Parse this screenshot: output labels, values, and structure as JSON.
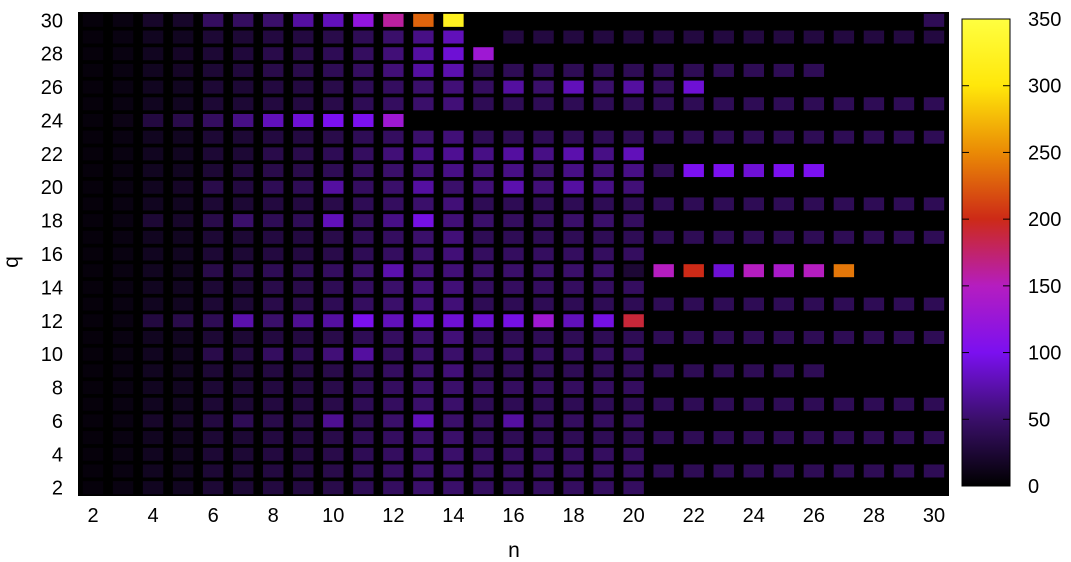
{
  "chart_data": {
    "type": "heatmap",
    "title": "",
    "xlabel": "n",
    "ylabel": "q",
    "xlim": [
      1.5,
      30.5
    ],
    "ylim": [
      1.5,
      30.5
    ],
    "x_ticks": [
      2,
      4,
      6,
      8,
      10,
      12,
      14,
      16,
      18,
      20,
      22,
      24,
      26,
      28,
      30
    ],
    "y_ticks": [
      2,
      4,
      6,
      8,
      10,
      12,
      14,
      16,
      18,
      20,
      22,
      24,
      26,
      28,
      30
    ],
    "colorbar": {
      "range": [
        0,
        350
      ],
      "ticks": [
        0,
        50,
        100,
        150,
        200,
        250,
        300,
        350
      ],
      "palette": [
        "#000000",
        "#3a0f6a",
        "#7b10f0",
        "#b51dc0",
        "#cd2a17",
        "#ea8a05",
        "#ffe70a",
        "#ffff40"
      ]
    },
    "background_color": "#000000",
    "value_grid": {
      "rows_q": [
        30,
        29,
        28,
        27,
        26,
        25,
        24,
        23,
        22,
        21,
        20,
        19,
        18,
        17,
        16,
        15,
        14,
        13,
        12,
        11,
        10,
        9,
        8,
        7,
        6,
        5,
        4,
        3,
        2
      ],
      "cols_n": [
        2,
        3,
        4,
        5,
        6,
        7,
        8,
        9,
        10,
        11,
        12,
        13,
        14,
        15,
        16,
        17,
        18,
        19,
        20,
        21,
        22,
        23,
        24,
        25,
        26,
        27,
        28,
        29,
        30
      ],
      "values": [
        [
          5,
          8,
          20,
          20,
          45,
          45,
          50,
          70,
          80,
          120,
          160,
          230,
          320,
          0,
          0,
          0,
          0,
          0,
          0,
          0,
          0,
          0,
          0,
          0,
          0,
          0,
          0,
          0,
          40
        ],
        [
          5,
          8,
          15,
          15,
          25,
          25,
          30,
          30,
          35,
          40,
          50,
          60,
          80,
          0,
          30,
          30,
          30,
          30,
          30,
          30,
          30,
          30,
          30,
          30,
          30,
          30,
          30,
          30,
          30
        ],
        [
          5,
          8,
          15,
          18,
          25,
          28,
          35,
          35,
          40,
          45,
          55,
          70,
          90,
          130,
          0,
          0,
          0,
          0,
          0,
          0,
          0,
          0,
          0,
          0,
          0,
          0,
          0,
          0,
          0
        ],
        [
          5,
          8,
          15,
          18,
          25,
          28,
          35,
          35,
          40,
          45,
          55,
          70,
          75,
          40,
          40,
          40,
          40,
          40,
          40,
          40,
          40,
          40,
          40,
          40,
          40,
          0,
          0,
          0,
          0
        ],
        [
          5,
          8,
          15,
          15,
          25,
          25,
          30,
          30,
          35,
          40,
          45,
          50,
          55,
          45,
          70,
          50,
          80,
          50,
          70,
          45,
          90,
          0,
          0,
          0,
          0,
          0,
          0,
          0,
          0
        ],
        [
          5,
          8,
          15,
          15,
          25,
          25,
          30,
          30,
          35,
          40,
          45,
          50,
          55,
          40,
          40,
          40,
          40,
          40,
          40,
          40,
          40,
          40,
          40,
          40,
          40,
          40,
          40,
          40,
          40
        ],
        [
          5,
          10,
          30,
          35,
          45,
          60,
          80,
          90,
          100,
          100,
          130,
          0,
          0,
          0,
          0,
          0,
          0,
          0,
          0,
          0,
          0,
          0,
          0,
          0,
          0,
          0,
          0,
          0,
          0
        ],
        [
          5,
          8,
          15,
          15,
          25,
          25,
          30,
          30,
          35,
          40,
          45,
          50,
          55,
          40,
          40,
          40,
          40,
          40,
          40,
          40,
          40,
          40,
          40,
          40,
          40,
          40,
          40,
          40,
          40
        ],
        [
          5,
          8,
          15,
          15,
          25,
          25,
          35,
          35,
          40,
          45,
          55,
          60,
          65,
          60,
          70,
          60,
          75,
          60,
          80,
          0,
          0,
          0,
          0,
          0,
          0,
          0,
          0,
          0,
          0
        ],
        [
          5,
          8,
          15,
          15,
          25,
          30,
          35,
          35,
          40,
          45,
          50,
          55,
          60,
          55,
          60,
          50,
          60,
          55,
          60,
          40,
          100,
          100,
          90,
          100,
          100,
          0,
          0,
          0,
          0
        ],
        [
          5,
          8,
          15,
          18,
          35,
          30,
          40,
          40,
          70,
          45,
          50,
          70,
          50,
          55,
          75,
          55,
          70,
          60,
          55,
          0,
          0,
          0,
          0,
          0,
          0,
          0,
          0,
          0,
          0
        ],
        [
          5,
          8,
          15,
          15,
          25,
          25,
          30,
          30,
          35,
          40,
          45,
          50,
          55,
          40,
          40,
          40,
          40,
          40,
          40,
          40,
          40,
          40,
          40,
          40,
          40,
          40,
          40,
          40,
          40
        ],
        [
          5,
          8,
          25,
          20,
          35,
          50,
          40,
          40,
          80,
          45,
          60,
          95,
          55,
          50,
          45,
          45,
          50,
          50,
          45,
          0,
          0,
          0,
          0,
          0,
          0,
          0,
          0,
          0,
          0
        ],
        [
          5,
          8,
          15,
          15,
          25,
          25,
          30,
          30,
          35,
          40,
          45,
          50,
          55,
          40,
          40,
          40,
          40,
          40,
          40,
          40,
          40,
          40,
          40,
          40,
          40,
          40,
          40,
          40,
          40
        ],
        [
          5,
          8,
          15,
          15,
          25,
          25,
          30,
          30,
          35,
          40,
          45,
          50,
          55,
          45,
          45,
          45,
          45,
          45,
          45,
          0,
          0,
          0,
          0,
          0,
          0,
          0,
          0,
          0,
          0
        ],
        [
          5,
          8,
          15,
          15,
          35,
          35,
          40,
          40,
          45,
          50,
          75,
          55,
          55,
          50,
          50,
          50,
          50,
          50,
          25,
          150,
          200,
          90,
          150,
          140,
          150,
          240,
          0,
          0,
          0
        ],
        [
          5,
          8,
          15,
          15,
          25,
          25,
          35,
          35,
          40,
          45,
          50,
          55,
          55,
          45,
          45,
          45,
          45,
          45,
          45,
          0,
          0,
          0,
          0,
          0,
          0,
          0,
          0,
          0,
          0
        ],
        [
          5,
          8,
          15,
          15,
          25,
          25,
          35,
          35,
          40,
          45,
          50,
          55,
          55,
          40,
          40,
          40,
          40,
          40,
          40,
          40,
          40,
          40,
          40,
          40,
          40,
          40,
          40,
          40,
          40
        ],
        [
          5,
          8,
          30,
          35,
          40,
          75,
          50,
          65,
          70,
          100,
          80,
          90,
          90,
          90,
          95,
          130,
          80,
          95,
          190,
          0,
          0,
          0,
          0,
          0,
          0,
          0,
          0,
          0,
          0
        ],
        [
          5,
          8,
          15,
          15,
          25,
          25,
          30,
          30,
          35,
          40,
          45,
          50,
          55,
          40,
          40,
          40,
          40,
          40,
          40,
          40,
          40,
          40,
          40,
          40,
          40,
          40,
          40,
          40,
          40
        ],
        [
          5,
          8,
          15,
          15,
          35,
          30,
          45,
          40,
          55,
          70,
          45,
          50,
          50,
          45,
          45,
          45,
          45,
          45,
          45,
          0,
          0,
          0,
          0,
          0,
          0,
          0,
          0,
          0,
          0
        ],
        [
          5,
          8,
          15,
          15,
          25,
          25,
          30,
          30,
          35,
          40,
          45,
          50,
          55,
          40,
          40,
          40,
          40,
          40,
          40,
          40,
          40,
          40,
          40,
          40,
          40,
          0,
          0,
          0,
          0
        ],
        [
          5,
          8,
          15,
          15,
          25,
          25,
          30,
          30,
          35,
          40,
          45,
          50,
          50,
          45,
          45,
          45,
          45,
          45,
          45,
          0,
          0,
          0,
          0,
          0,
          0,
          0,
          0,
          0,
          0
        ],
        [
          5,
          8,
          15,
          15,
          25,
          25,
          30,
          30,
          35,
          40,
          45,
          50,
          50,
          40,
          40,
          40,
          40,
          40,
          40,
          40,
          40,
          40,
          40,
          40,
          40,
          40,
          40,
          40,
          40
        ],
        [
          5,
          8,
          20,
          20,
          30,
          40,
          35,
          35,
          65,
          40,
          50,
          80,
          50,
          45,
          70,
          45,
          45,
          45,
          45,
          0,
          0,
          0,
          0,
          0,
          0,
          0,
          0,
          0,
          0
        ],
        [
          5,
          8,
          15,
          15,
          25,
          25,
          30,
          30,
          35,
          40,
          45,
          50,
          50,
          40,
          40,
          40,
          40,
          40,
          40,
          40,
          40,
          40,
          40,
          40,
          40,
          40,
          40,
          40,
          40
        ],
        [
          5,
          8,
          15,
          15,
          25,
          25,
          30,
          30,
          35,
          40,
          45,
          50,
          50,
          45,
          45,
          45,
          45,
          45,
          45,
          0,
          0,
          0,
          0,
          0,
          0,
          0,
          0,
          0,
          0
        ],
        [
          5,
          8,
          15,
          15,
          25,
          25,
          30,
          30,
          35,
          40,
          45,
          50,
          50,
          45,
          45,
          45,
          45,
          45,
          45,
          40,
          40,
          40,
          40,
          40,
          40,
          40,
          40,
          40,
          40
        ],
        [
          5,
          8,
          15,
          15,
          25,
          25,
          30,
          30,
          35,
          40,
          45,
          50,
          50,
          45,
          45,
          45,
          45,
          45,
          45,
          0,
          0,
          0,
          0,
          0,
          0,
          0,
          0,
          0,
          0
        ]
      ]
    }
  }
}
